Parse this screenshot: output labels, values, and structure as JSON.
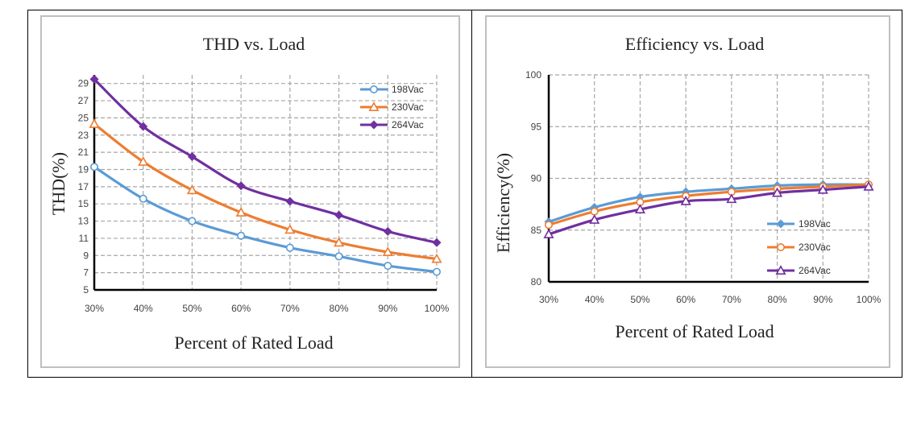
{
  "chart_data": [
    {
      "id": "thd",
      "type": "line",
      "title": "THD vs. Load",
      "xlabel": "Percent of Rated Load",
      "ylabel": "THD(%)",
      "categories": [
        "30%",
        "40%",
        "50%",
        "60%",
        "70%",
        "80%",
        "90%",
        "100%"
      ],
      "ylim": [
        5,
        30
      ],
      "yticks": [
        5,
        7,
        9,
        11,
        13,
        15,
        17,
        19,
        21,
        23,
        25,
        27,
        29
      ],
      "grid": true,
      "legend": "top-right",
      "series": [
        {
          "name": "198Vac",
          "color": "#5b9bd5",
          "marker": "circle",
          "values": [
            19.3,
            15.6,
            13.0,
            11.3,
            9.9,
            8.9,
            7.8,
            7.1
          ]
        },
        {
          "name": "230Vac",
          "color": "#ed7d31",
          "marker": "triangle",
          "values": [
            24.3,
            19.9,
            16.6,
            14.0,
            12.0,
            10.5,
            9.4,
            8.6
          ]
        },
        {
          "name": "264Vac",
          "color": "#7030a0",
          "marker": "diamond",
          "values": [
            29.5,
            24.0,
            20.5,
            17.1,
            15.3,
            13.7,
            11.8,
            10.5
          ]
        }
      ]
    },
    {
      "id": "eff",
      "type": "line",
      "title": "Efficiency vs. Load",
      "xlabel": "Percent of Rated Load",
      "ylabel": "Efficiency(%)",
      "categories": [
        "30%",
        "40%",
        "50%",
        "60%",
        "70%",
        "80%",
        "90%",
        "100%"
      ],
      "ylim": [
        80,
        100
      ],
      "yticks": [
        80,
        85,
        90,
        95,
        100
      ],
      "grid": true,
      "legend": "bottom-right",
      "series": [
        {
          "name": "198Vac",
          "color": "#5b9bd5",
          "marker": "diamond",
          "values": [
            85.8,
            87.2,
            88.2,
            88.7,
            89.0,
            89.3,
            89.4,
            89.4
          ]
        },
        {
          "name": "230Vac",
          "color": "#ed7d31",
          "marker": "circle",
          "values": [
            85.5,
            86.8,
            87.7,
            88.3,
            88.7,
            89.0,
            89.2,
            89.4
          ]
        },
        {
          "name": "264Vac",
          "color": "#7030a0",
          "marker": "triangle",
          "values": [
            84.6,
            86.0,
            87.0,
            87.8,
            88.0,
            88.6,
            88.9,
            89.2
          ]
        }
      ]
    }
  ]
}
